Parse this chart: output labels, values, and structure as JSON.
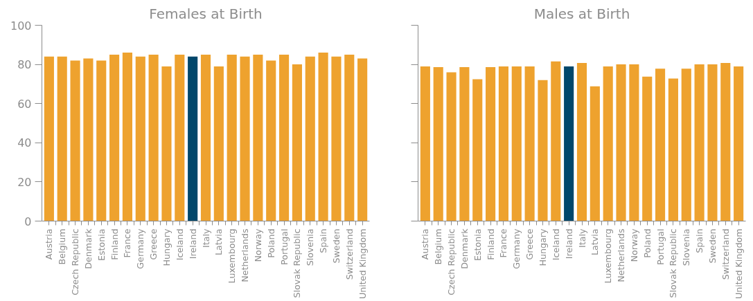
{
  "chart_data": [
    {
      "type": "bar",
      "title": "Females at Birth",
      "categories": [
        "Austria",
        "Belgium",
        "Czech Republic",
        "Denmark",
        "Estonia",
        "Finland",
        "France",
        "Germany",
        "Greece",
        "Hungary",
        "Iceland",
        "Ireland",
        "Italy",
        "Latvia",
        "Luxembourg",
        "Netherlands",
        "Norway",
        "Poland",
        "Portugal",
        "Slovak Republic",
        "Slovenia",
        "Spain",
        "Sweden",
        "Switzerland",
        "United Kingdom"
      ],
      "values": [
        84,
        84,
        82,
        83,
        82,
        85,
        86,
        84,
        85,
        79,
        85,
        84,
        85,
        79,
        85,
        84,
        85,
        82,
        85,
        80,
        84,
        86,
        84,
        85,
        83
      ],
      "colors": [
        "#eea22e",
        "#eea22e",
        "#eea22e",
        "#eea22e",
        "#eea22e",
        "#eea22e",
        "#eea22e",
        "#eea22e",
        "#eea22e",
        "#eea22e",
        "#eea22e",
        "#00476b",
        "#eea22e",
        "#eea22e",
        "#eea22e",
        "#eea22e",
        "#eea22e",
        "#eea22e",
        "#eea22e",
        "#eea22e",
        "#eea22e",
        "#eea22e",
        "#eea22e",
        "#eea22e",
        "#eea22e"
      ],
      "ylim": [
        0,
        100
      ],
      "yticks": [
        0,
        20,
        40,
        60,
        80,
        100
      ]
    },
    {
      "type": "bar",
      "title": "Males at Birth",
      "categories": [
        "Austria",
        "Belgium",
        "Czech Republic",
        "Denmark",
        "Estonia",
        "Finland",
        "France",
        "Germany",
        "Greece",
        "Hungary",
        "Iceland",
        "Ireland",
        "Italy",
        "Latvia",
        "Luxembourg",
        "Netherlands",
        "Norway",
        "Poland",
        "Portugal",
        "Slovak Republic",
        "Slovenia",
        "Spain",
        "Sweden",
        "Switzerland",
        "United Kingdom"
      ],
      "values": [
        79,
        78.6,
        76,
        78.6,
        72.4,
        78.6,
        79,
        79,
        79,
        72,
        81.5,
        79,
        80.7,
        68.8,
        79,
        80,
        80,
        73.8,
        77.8,
        72.8,
        77.8,
        80,
        80,
        80.7,
        79
      ],
      "colors": [
        "#eea22e",
        "#eea22e",
        "#eea22e",
        "#eea22e",
        "#eea22e",
        "#eea22e",
        "#eea22e",
        "#eea22e",
        "#eea22e",
        "#eea22e",
        "#eea22e",
        "#00476b",
        "#eea22e",
        "#eea22e",
        "#eea22e",
        "#eea22e",
        "#eea22e",
        "#eea22e",
        "#eea22e",
        "#eea22e",
        "#eea22e",
        "#eea22e",
        "#eea22e",
        "#eea22e",
        "#eea22e"
      ],
      "ylim": [
        0,
        100
      ],
      "yticks": [
        0,
        20,
        40,
        60,
        80,
        100
      ],
      "tick_labels": "x"
    }
  ]
}
